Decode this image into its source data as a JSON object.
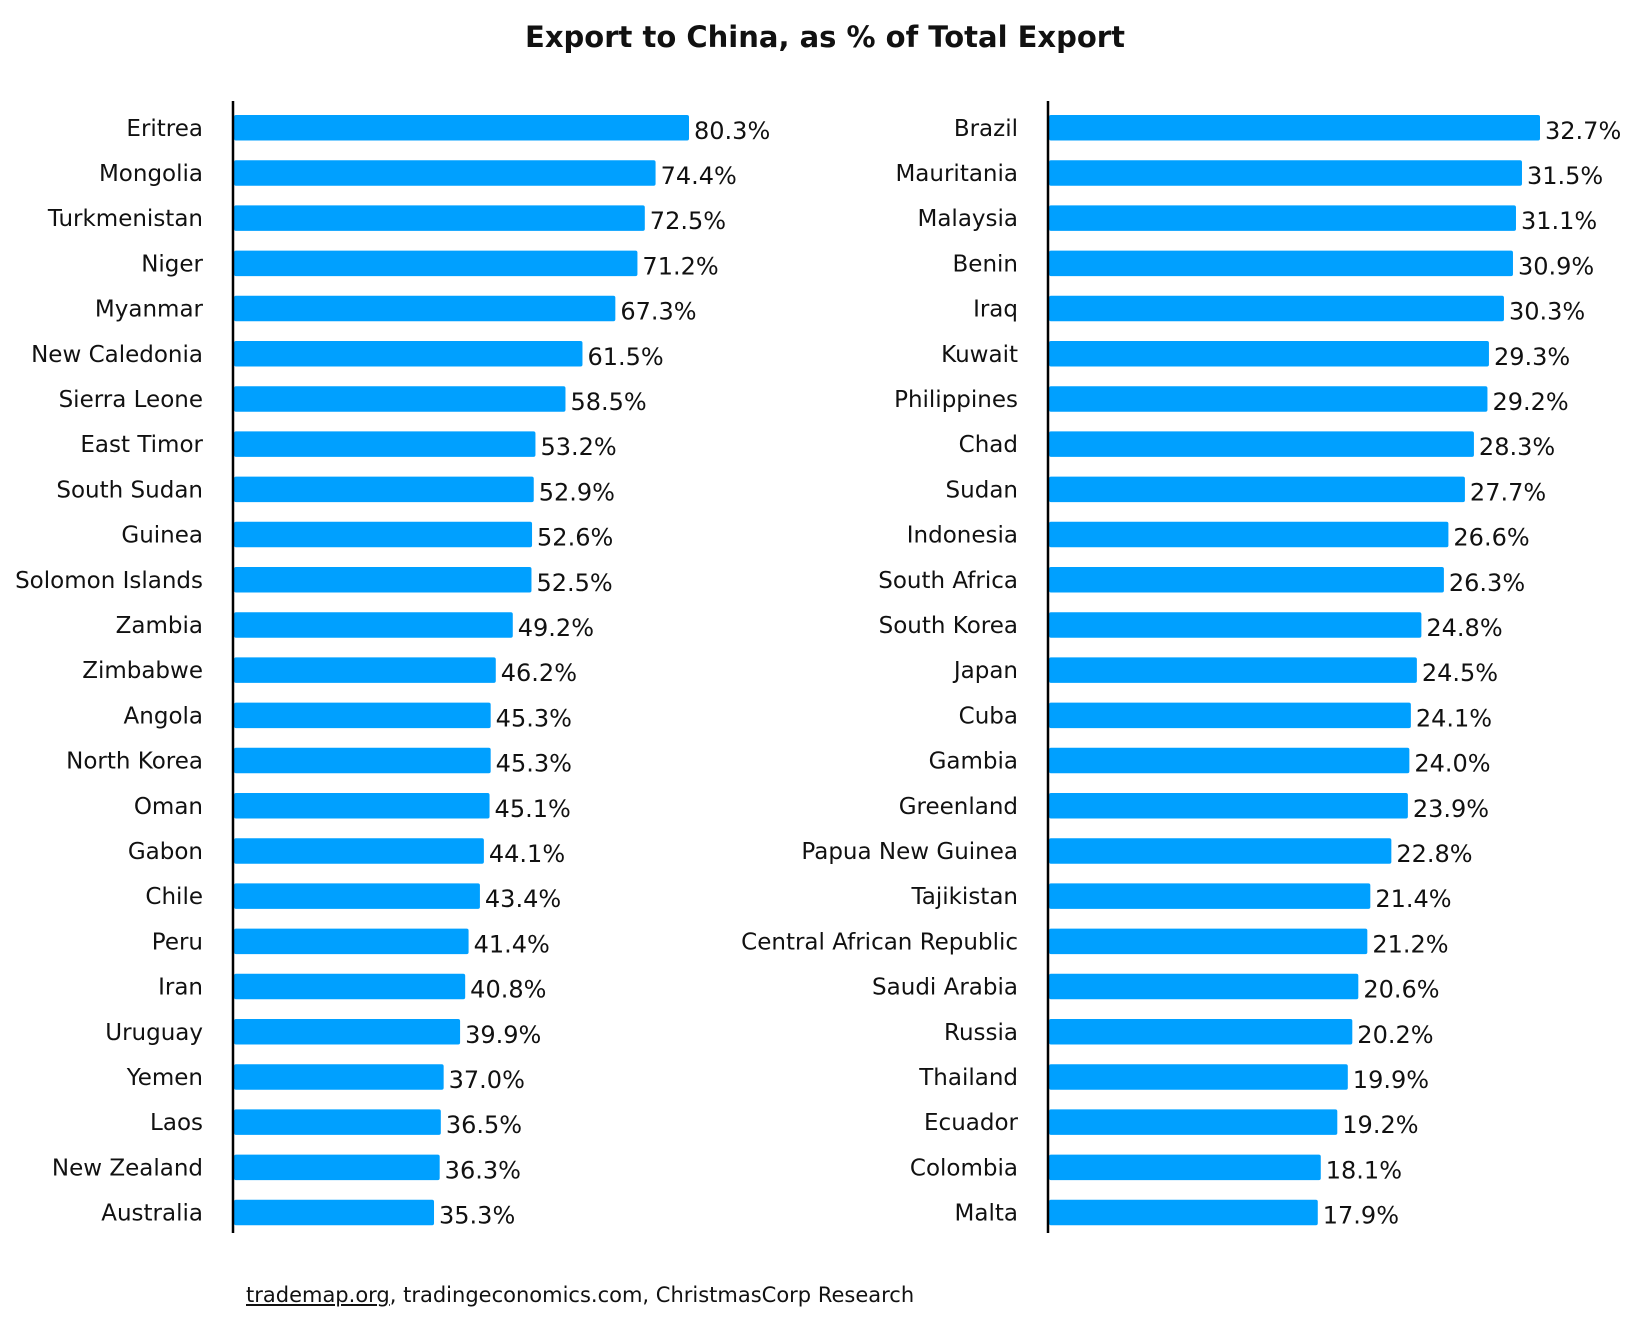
{
  "chart_data": [
    {
      "type": "bar",
      "orientation": "horizontal",
      "title": "Export to China, as % of Total Export",
      "categories": [
        "Eritrea",
        "Mongolia",
        "Turkmenistan",
        "Niger",
        "Myanmar",
        "New Caledonia",
        "Sierra Leone",
        "East Timor",
        "South Sudan",
        "Guinea",
        "Solomon Islands",
        "Zambia",
        "Zimbabwe",
        "Angola",
        "North Korea",
        "Oman",
        "Gabon",
        "Chile",
        "Peru",
        "Iran",
        "Uruguay",
        "Yemen",
        "Laos",
        "New Zealand",
        "Australia"
      ],
      "values": [
        80.3,
        74.4,
        72.5,
        71.2,
        67.3,
        61.5,
        58.5,
        53.2,
        52.9,
        52.6,
        52.5,
        49.2,
        46.2,
        45.3,
        45.3,
        45.1,
        44.1,
        43.4,
        41.4,
        40.8,
        39.9,
        37.0,
        36.5,
        36.3,
        35.3
      ],
      "value_labels": [
        "80.3%",
        "74.4%",
        "72.5%",
        "71.2%",
        "67.3%",
        "61.5%",
        "58.5%",
        "53.2%",
        "52.9%",
        "52.6%",
        "52.5%",
        "49.2%",
        "46.2%",
        "45.3%",
        "45.3%",
        "45.1%",
        "44.1%",
        "43.4%",
        "41.4%",
        "40.8%",
        "39.9%",
        "37.0%",
        "36.5%",
        "36.3%",
        "35.3%"
      ],
      "xlim": [
        0,
        80.3
      ],
      "grid": false,
      "color": "#00a0ff"
    },
    {
      "type": "bar",
      "orientation": "horizontal",
      "categories": [
        "Brazil",
        "Mauritania",
        "Malaysia",
        "Benin",
        "Iraq",
        "Kuwait",
        "Philippines",
        "Chad",
        "Sudan",
        "Indonesia",
        "South Africa",
        "South Korea",
        "Japan",
        "Cuba",
        "Gambia",
        "Greenland",
        "Papua New Guinea",
        "Tajikistan",
        "Central African Republic",
        "Saudi Arabia",
        "Russia",
        "Thailand",
        "Ecuador",
        "Colombia",
        "Malta"
      ],
      "values": [
        32.7,
        31.5,
        31.1,
        30.9,
        30.3,
        29.3,
        29.2,
        28.3,
        27.7,
        26.6,
        26.3,
        24.8,
        24.5,
        24.1,
        24.0,
        23.9,
        22.8,
        21.4,
        21.2,
        20.6,
        20.2,
        19.9,
        19.2,
        18.1,
        17.9
      ],
      "value_labels": [
        "32.7%",
        "31.5%",
        "31.1%",
        "30.9%",
        "30.3%",
        "29.3%",
        "29.2%",
        "28.3%",
        "27.7%",
        "26.6%",
        "26.3%",
        "24.8%",
        "24.5%",
        "24.1%",
        "24.0%",
        "23.9%",
        "22.8%",
        "21.4%",
        "21.2%",
        "20.6%",
        "20.2%",
        "19.9%",
        "19.2%",
        "18.1%",
        "17.9%"
      ],
      "xlim": [
        0,
        32.7
      ],
      "grid": false,
      "color": "#00a0ff"
    }
  ],
  "source": {
    "link": "trademap.org",
    "rest": ", tradingeconomics.com, ChristmasCorp Research"
  }
}
